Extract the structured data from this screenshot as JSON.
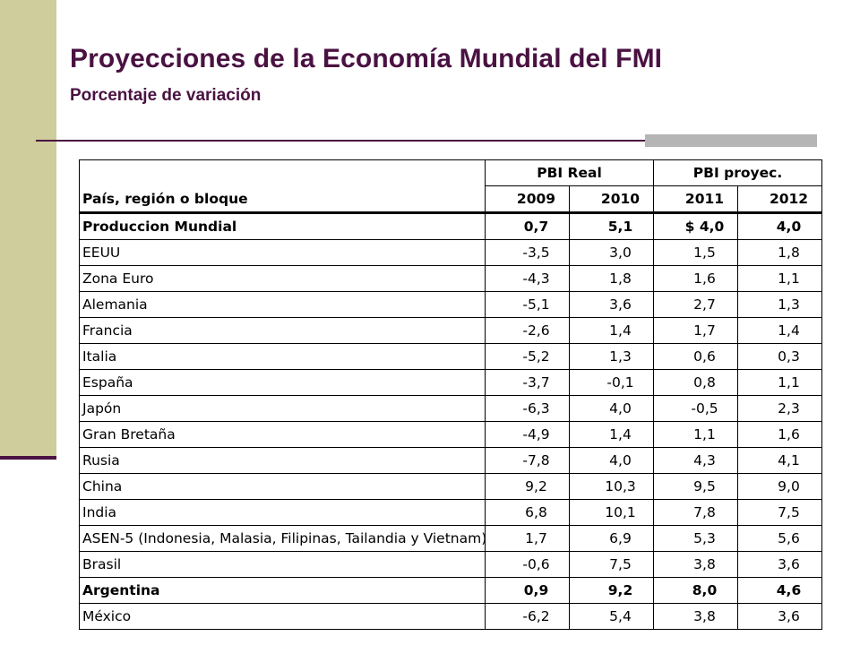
{
  "title": "Proyecciones de la Economía Mundial del FMI",
  "subtitle": "Porcentaje de variación",
  "table": {
    "country_header": "País, región o bloque",
    "groups": [
      "PBI Real",
      "PBI proyec."
    ],
    "years": [
      "2009",
      "2010",
      "2011",
      "2012"
    ],
    "rows": [
      {
        "name": "Produccion Mundial",
        "bold": true,
        "values": [
          "0,7",
          "5,1",
          "$ 4,0",
          "4,0"
        ]
      },
      {
        "name": "EEUU",
        "bold": false,
        "values": [
          "-3,5",
          "3,0",
          "1,5",
          "1,8"
        ]
      },
      {
        "name": "Zona Euro",
        "bold": false,
        "values": [
          "-4,3",
          "1,8",
          "1,6",
          "1,1"
        ]
      },
      {
        "name": "Alemania",
        "bold": false,
        "values": [
          "-5,1",
          "3,6",
          "2,7",
          "1,3"
        ]
      },
      {
        "name": "Francia",
        "bold": false,
        "values": [
          "-2,6",
          "1,4",
          "1,7",
          "1,4"
        ]
      },
      {
        "name": "Italia",
        "bold": false,
        "values": [
          "-5,2",
          "1,3",
          "0,6",
          "0,3"
        ]
      },
      {
        "name": "España",
        "bold": false,
        "values": [
          "-3,7",
          "-0,1",
          "0,8",
          "1,1"
        ]
      },
      {
        "name": "Japón",
        "bold": false,
        "values": [
          "-6,3",
          "4,0",
          "-0,5",
          "2,3"
        ]
      },
      {
        "name": "Gran Bretaña",
        "bold": false,
        "values": [
          "-4,9",
          "1,4",
          "1,1",
          "1,6"
        ]
      },
      {
        "name": "Rusia",
        "bold": false,
        "values": [
          "-7,8",
          "4,0",
          "4,3",
          "4,1"
        ]
      },
      {
        "name": "China",
        "bold": false,
        "values": [
          "9,2",
          "10,3",
          "9,5",
          "9,0"
        ]
      },
      {
        "name": "India",
        "bold": false,
        "values": [
          "6,8",
          "10,1",
          "7,8",
          "7,5"
        ]
      },
      {
        "name": "ASEN-5 (Indonesia, Malasia, Filipinas, Tailandia y Vietnam)",
        "bold": false,
        "values": [
          "1,7",
          "6,9",
          "5,3",
          "5,6"
        ]
      },
      {
        "name": "Brasil",
        "bold": false,
        "values": [
          "-0,6",
          "7,5",
          "3,8",
          "3,6"
        ]
      },
      {
        "name": "Argentina",
        "bold": true,
        "values": [
          "0,9",
          "9,2",
          "8,0",
          "4,6"
        ]
      },
      {
        "name": "México",
        "bold": false,
        "values": [
          "-6,2",
          "5,4",
          "3,8",
          "3,6"
        ]
      }
    ]
  },
  "colors": {
    "accent": "#4a1242",
    "side_band": "#cfcd9b",
    "rule_gray": "#b5b5b5"
  }
}
